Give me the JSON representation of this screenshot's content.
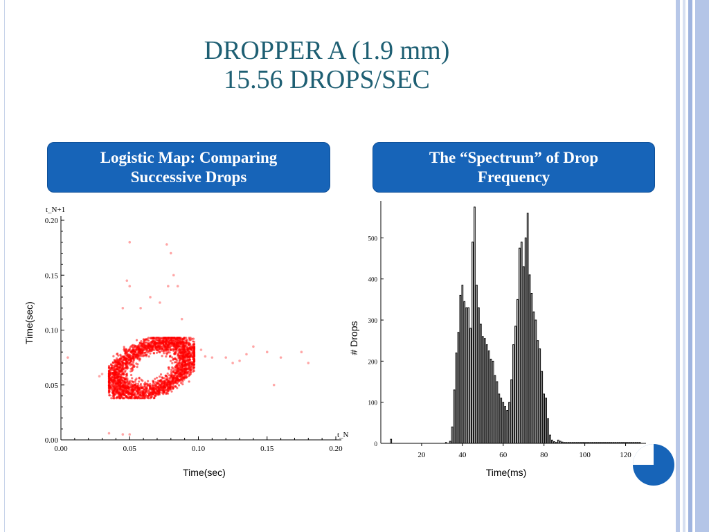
{
  "title": {
    "line1": "DROPPER A (1.9 mm)",
    "line2": "15.56 DROPS/SEC"
  },
  "panels": {
    "left_header": "Logistic Map: Comparing\nSuccessive Drops",
    "right_header": "The “Spectrum” of Drop\nFrequency"
  },
  "colors": {
    "title": "#1e5f73",
    "header_bg": "#1764b8",
    "scatter_points": "#ff0000",
    "bars": "#ffffff",
    "bar_stroke": "#000000"
  },
  "chart_data": [
    {
      "type": "scatter",
      "title": "",
      "xlabel": "Time(sec)",
      "ylabel": "Time(sec)",
      "x_axis_name": "t_N",
      "y_axis_name": "t_N+1",
      "xlim": [
        0.0,
        0.2
      ],
      "ylim": [
        0.0,
        0.2
      ],
      "x_ticks": [
        "0.00",
        "0.05",
        "0.10",
        "0.15",
        "0.20"
      ],
      "y_ticks": [
        "0.00",
        "0.05",
        "0.10",
        "0.15",
        "0.20"
      ],
      "grid": false,
      "series": [
        {
          "cluster": {
            "x_range": [
              0.035,
              0.097
            ],
            "y_range": [
              0.038,
              0.093
            ]
          },
          "outliers": [
            [
              0.005,
              0.075
            ],
            [
              0.05,
              0.18
            ],
            [
              0.077,
              0.178
            ],
            [
              0.08,
              0.17
            ],
            [
              0.048,
              0.145
            ],
            [
              0.05,
              0.14
            ],
            [
              0.065,
              0.13
            ],
            [
              0.082,
              0.15
            ],
            [
              0.078,
              0.14
            ],
            [
              0.072,
              0.125
            ],
            [
              0.085,
              0.14
            ],
            [
              0.088,
              0.11
            ],
            [
              0.045,
              0.12
            ],
            [
              0.058,
              0.12
            ],
            [
              0.12,
              0.075
            ],
            [
              0.135,
              0.078
            ],
            [
              0.14,
              0.085
            ],
            [
              0.15,
              0.08
            ],
            [
              0.16,
              0.075
            ],
            [
              0.175,
              0.08
            ],
            [
              0.18,
              0.07
            ],
            [
              0.155,
              0.05
            ],
            [
              0.11,
              0.075
            ],
            [
              0.125,
              0.07
            ],
            [
              0.045,
              0.005
            ],
            [
              0.05,
              0.005
            ],
            [
              0.035,
              0.006
            ],
            [
              0.028,
              0.058
            ],
            [
              0.03,
              0.06
            ],
            [
              0.13,
              0.072
            ],
            [
              0.102,
              0.082
            ],
            [
              0.105,
              0.076
            ]
          ]
        }
      ]
    },
    {
      "type": "bar",
      "title": "",
      "xlabel": "Time(ms)",
      "ylabel": "# Drops",
      "xlim": [
        0,
        130
      ],
      "ylim": [
        0,
        590
      ],
      "x_ticks": [
        "20",
        "40",
        "60",
        "80",
        "100",
        "120"
      ],
      "y_ticks": [
        "0",
        "100",
        "200",
        "300",
        "400",
        "500"
      ],
      "bar_width": 1,
      "x": [
        5,
        32,
        34,
        35,
        36,
        37,
        38,
        39,
        40,
        41,
        42,
        43,
        44,
        45,
        46,
        47,
        48,
        49,
        50,
        51,
        52,
        53,
        54,
        55,
        56,
        57,
        58,
        59,
        60,
        61,
        62,
        63,
        64,
        65,
        66,
        67,
        68,
        69,
        70,
        71,
        72,
        73,
        74,
        75,
        76,
        77,
        78,
        79,
        80,
        81,
        82,
        83,
        84,
        85,
        86,
        87,
        88,
        89,
        90,
        91,
        92,
        93,
        94,
        95,
        96,
        97,
        98,
        99,
        100,
        101,
        102,
        103,
        104,
        105,
        106,
        107,
        108,
        109,
        110,
        111,
        112,
        113,
        114,
        115,
        116,
        117,
        118,
        119,
        120,
        121,
        122,
        123,
        124,
        125,
        126,
        127
      ],
      "values": [
        10,
        2,
        5,
        40,
        130,
        220,
        270,
        360,
        385,
        345,
        330,
        330,
        280,
        490,
        575,
        385,
        330,
        290,
        260,
        255,
        240,
        225,
        205,
        200,
        165,
        150,
        120,
        110,
        100,
        90,
        80,
        100,
        155,
        240,
        285,
        350,
        475,
        490,
        430,
        500,
        560,
        410,
        365,
        320,
        300,
        250,
        230,
        175,
        120,
        110,
        60,
        20,
        8,
        4,
        2,
        8,
        5,
        3,
        2,
        2,
        2,
        2,
        2,
        2,
        2,
        2,
        2,
        2,
        2,
        2,
        2,
        2,
        2,
        2,
        2,
        2,
        2,
        2,
        2,
        2,
        2,
        2,
        2,
        2,
        2,
        2,
        2,
        2,
        2,
        2,
        2,
        2,
        2,
        2,
        2,
        2
      ]
    }
  ]
}
